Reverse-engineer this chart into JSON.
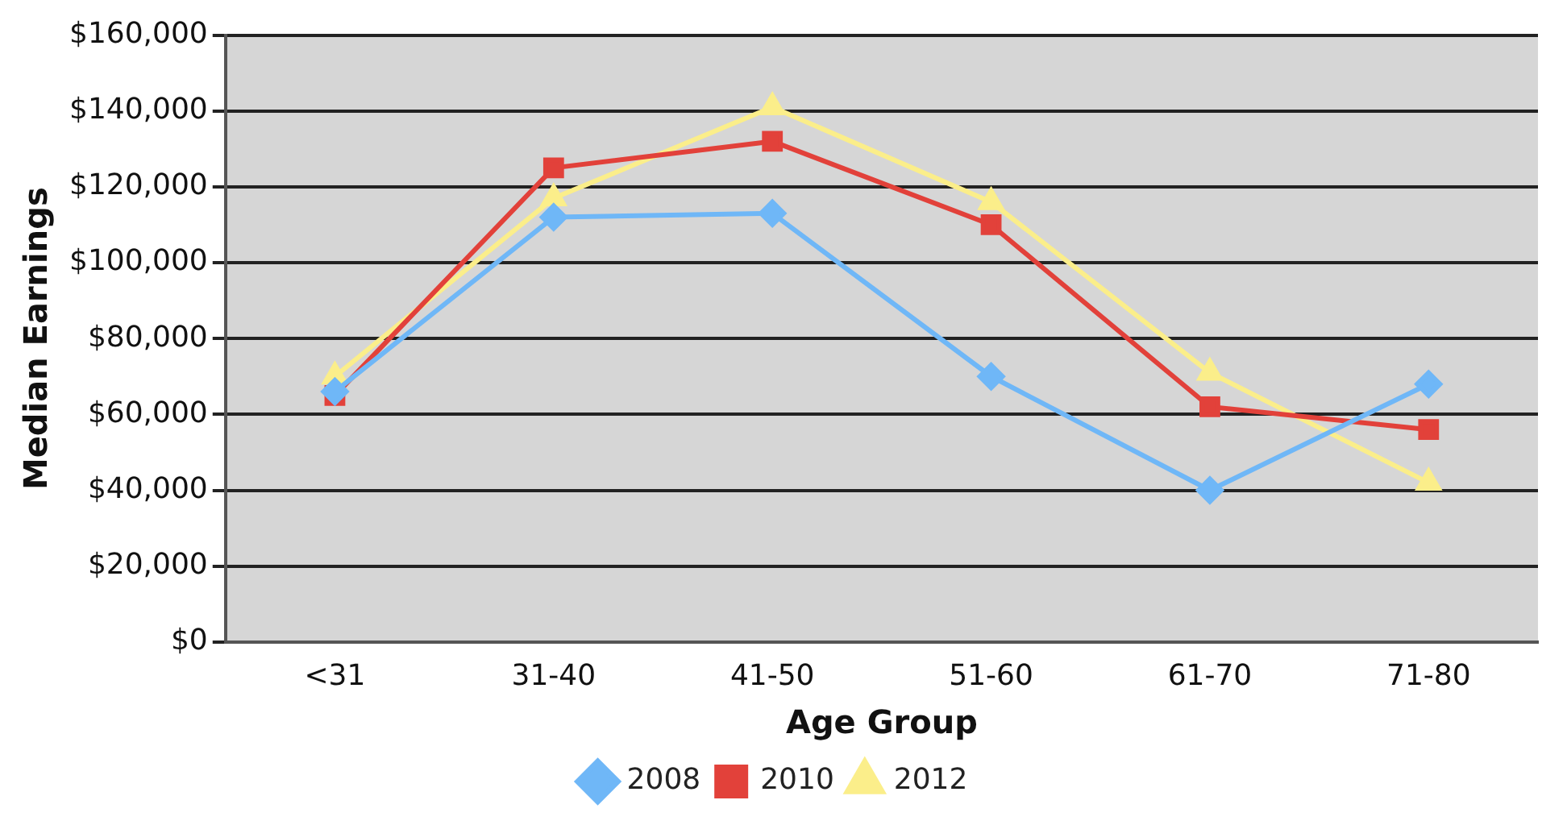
{
  "chart_data": {
    "type": "line",
    "xlabel": "Age Group",
    "ylabel": "Median Earnings",
    "categories": [
      "<31",
      "31-40",
      "41-50",
      "51-60",
      "61-70",
      "71-80"
    ],
    "series": [
      {
        "name": "2008",
        "color": "#6fb7f7",
        "marker": "diamond",
        "values": [
          66000,
          112000,
          113000,
          70000,
          40000,
          68000
        ]
      },
      {
        "name": "2010",
        "color": "#e2413a",
        "marker": "square",
        "values": [
          65000,
          125000,
          132000,
          110000,
          62000,
          56000
        ]
      },
      {
        "name": "2012",
        "color": "#fbee8a",
        "marker": "triangle",
        "values": [
          70000,
          117000,
          141000,
          116000,
          71000,
          42000
        ]
      }
    ],
    "ylim": [
      0,
      160000
    ],
    "yticks": [
      {
        "value": 0,
        "label": "$0"
      },
      {
        "value": 20000,
        "label": "$20,000"
      },
      {
        "value": 40000,
        "label": "$40,000"
      },
      {
        "value": 60000,
        "label": "$60,000"
      },
      {
        "value": 80000,
        "label": "$80,000"
      },
      {
        "value": 100000,
        "label": "$100,000"
      },
      {
        "value": 120000,
        "label": "$120,000"
      },
      {
        "value": 140000,
        "label": "$140,000"
      },
      {
        "value": 160000,
        "label": "$160,000"
      }
    ],
    "grid": "y",
    "legend": "bottom"
  }
}
